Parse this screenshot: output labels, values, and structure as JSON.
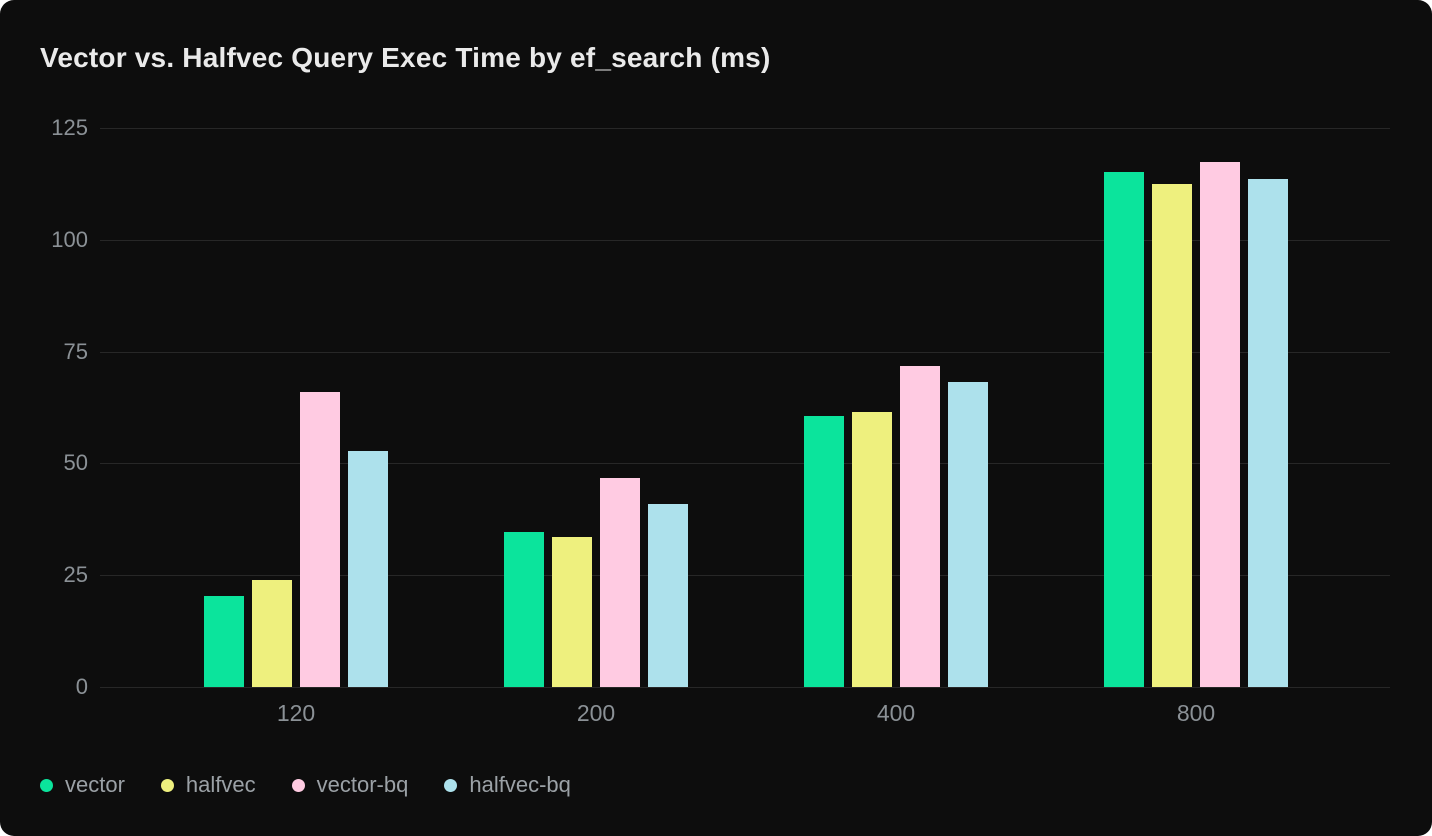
{
  "title": "Vector vs. Halfvec Query Exec Time by ef_search (ms)",
  "colors": {
    "page_background": "#ffffff",
    "card_background": "#0d0d0d",
    "gridline": "#272727",
    "title_text": "#eaeaea",
    "axis_label_text": "#8b9196",
    "legend_text": "#9ba1a6"
  },
  "chart_data": {
    "type": "bar",
    "title": "Vector vs. Halfvec Query Exec Time by ef_search (ms)",
    "categories": [
      "120",
      "200",
      "400",
      "800"
    ],
    "series": [
      {
        "name": "vector",
        "color": "#0be49c",
        "values": [
          20.3,
          34.6,
          60.5,
          115.1
        ]
      },
      {
        "name": "halfvec",
        "color": "#eef07e",
        "values": [
          23.9,
          33.6,
          61.4,
          112.4
        ]
      },
      {
        "name": "vector-bq",
        "color": "#ffcbe2",
        "values": [
          66.0,
          46.7,
          71.8,
          117.4
        ]
      },
      {
        "name": "halfvec-bq",
        "color": "#ade1ec",
        "values": [
          52.7,
          40.9,
          68.2,
          113.7
        ]
      }
    ],
    "xlabel": "",
    "ylabel": "",
    "ylim": [
      0,
      125
    ],
    "yticks": [
      0,
      25,
      50,
      75,
      100,
      125
    ],
    "grid": true,
    "legend_position": "bottom-left",
    "legend": [
      "vector",
      "halfvec",
      "vector-bq",
      "halfvec-bq"
    ]
  }
}
